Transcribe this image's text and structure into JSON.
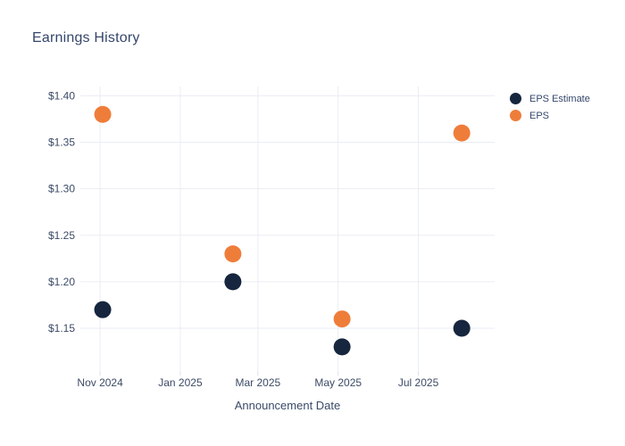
{
  "title": "Earnings History",
  "x_axis_title": "Announcement Date",
  "colors": {
    "eps_estimate": "#16263e",
    "eps": "#ef7d3a",
    "grid": "#e9edf4",
    "tick": "#d9dfeb",
    "text": "#3c4a66",
    "title_text": "#35466b"
  },
  "legend": [
    {
      "label": "EPS Estimate",
      "color": "#16263e"
    },
    {
      "label": "EPS",
      "color": "#ef7d3a"
    }
  ],
  "chart_data": {
    "type": "scatter",
    "title": "Earnings History",
    "xlabel": "Announcement Date",
    "ylabel": "",
    "grid": true,
    "legend_position": "outside-top-right",
    "x_domain": [
      "2024-10-17",
      "2025-08-28"
    ],
    "y_domain": [
      1.103,
      1.41
    ],
    "x_ticks": [
      {
        "date": "2024-11-01",
        "label": "Nov 2024"
      },
      {
        "date": "2025-01-01",
        "label": "Jan 2025"
      },
      {
        "date": "2025-03-01",
        "label": "Mar 2025"
      },
      {
        "date": "2025-05-01",
        "label": "May 2025"
      },
      {
        "date": "2025-07-01",
        "label": "Jul 2025"
      }
    ],
    "y_ticks": [
      {
        "value": 1.15,
        "label": "$1.15"
      },
      {
        "value": 1.2,
        "label": "$1.20"
      },
      {
        "value": 1.25,
        "label": "$1.25"
      },
      {
        "value": 1.3,
        "label": "$1.30"
      },
      {
        "value": 1.35,
        "label": "$1.35"
      },
      {
        "value": 1.4,
        "label": "$1.40"
      }
    ],
    "series": [
      {
        "name": "EPS Estimate",
        "color": "#16263e",
        "points": [
          {
            "date": "2024-11-03",
            "value": 1.17
          },
          {
            "date": "2025-02-10",
            "value": 1.2
          },
          {
            "date": "2025-05-04",
            "value": 1.13
          },
          {
            "date": "2025-08-03",
            "value": 1.15
          }
        ]
      },
      {
        "name": "EPS",
        "color": "#ef7d3a",
        "points": [
          {
            "date": "2024-11-03",
            "value": 1.38
          },
          {
            "date": "2025-02-10",
            "value": 1.23
          },
          {
            "date": "2025-05-04",
            "value": 1.16
          },
          {
            "date": "2025-08-03",
            "value": 1.36
          }
        ]
      }
    ]
  }
}
